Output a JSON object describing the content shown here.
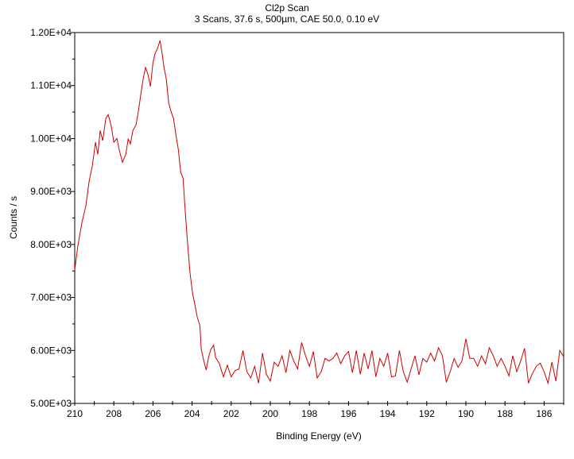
{
  "chart_data": {
    "type": "line",
    "title": "Cl2p Scan",
    "subtitle": "3 Scans,  37.6 s,  500µm,  CAE 50.0,  0.10 eV",
    "xlabel": "Binding Energy (eV)",
    "ylabel": "Counts / s",
    "xlim": [
      210,
      185
    ],
    "ylim": [
      5000,
      12000
    ],
    "x_ticks": [
      "210",
      "208",
      "206",
      "204",
      "202",
      "200",
      "198",
      "196",
      "194",
      "192",
      "190",
      "188",
      "186"
    ],
    "y_ticks": [
      "5.00E+03",
      "6.00E+03",
      "7.00E+03",
      "8.00E+03",
      "9.00E+03",
      "1.00E+04",
      "1.10E+04",
      "1.20E+04"
    ],
    "grid": false,
    "series": [
      {
        "name": "Cl2p",
        "color": "#cc0000",
        "points": [
          [
            210,
            7520
          ],
          [
            209.84,
            7970
          ],
          [
            209.63,
            8420
          ],
          [
            209.43,
            8730
          ],
          [
            209.27,
            9180
          ],
          [
            209.1,
            9480
          ],
          [
            208.94,
            9930
          ],
          [
            208.82,
            9700
          ],
          [
            208.7,
            10150
          ],
          [
            208.57,
            9960
          ],
          [
            208.41,
            10380
          ],
          [
            208.29,
            10450
          ],
          [
            208.13,
            10230
          ],
          [
            208.0,
            9930
          ],
          [
            207.84,
            10000
          ],
          [
            207.72,
            9780
          ],
          [
            207.56,
            9550
          ],
          [
            207.39,
            9700
          ],
          [
            207.27,
            9990
          ],
          [
            207.15,
            9900
          ],
          [
            207.03,
            10150
          ],
          [
            206.86,
            10260
          ],
          [
            206.74,
            10530
          ],
          [
            206.62,
            10830
          ],
          [
            206.5,
            11130
          ],
          [
            206.38,
            11340
          ],
          [
            206.25,
            11200
          ],
          [
            206.13,
            10980
          ],
          [
            206.0,
            11430
          ],
          [
            205.89,
            11610
          ],
          [
            205.77,
            11700
          ],
          [
            205.64,
            11850
          ],
          [
            205.52,
            11580
          ],
          [
            205.44,
            11350
          ],
          [
            205.32,
            11130
          ],
          [
            205.2,
            10680
          ],
          [
            205.07,
            10500
          ],
          [
            204.95,
            10380
          ],
          [
            204.83,
            10080
          ],
          [
            204.7,
            9780
          ],
          [
            204.58,
            9360
          ],
          [
            204.46,
            9250
          ],
          [
            204.34,
            8580
          ],
          [
            204.22,
            7970
          ],
          [
            204.1,
            7450
          ],
          [
            203.97,
            7070
          ],
          [
            203.85,
            6850
          ],
          [
            203.73,
            6620
          ],
          [
            203.6,
            6470
          ],
          [
            203.53,
            6020
          ],
          [
            203.4,
            5800
          ],
          [
            203.28,
            5630
          ],
          [
            203.16,
            5870
          ],
          [
            203.04,
            6020
          ],
          [
            202.9,
            6100
          ],
          [
            202.8,
            5870
          ],
          [
            202.6,
            5750
          ],
          [
            202.4,
            5500
          ],
          [
            202.2,
            5720
          ],
          [
            202.0,
            5500
          ],
          [
            201.8,
            5620
          ],
          [
            201.6,
            5650
          ],
          [
            201.4,
            6000
          ],
          [
            201.2,
            5600
          ],
          [
            201.0,
            5480
          ],
          [
            200.8,
            5700
          ],
          [
            200.6,
            5380
          ],
          [
            200.4,
            5950
          ],
          [
            200.2,
            5550
          ],
          [
            200.0,
            5420
          ],
          [
            199.8,
            5780
          ],
          [
            199.6,
            5700
          ],
          [
            199.4,
            5900
          ],
          [
            199.2,
            5580
          ],
          [
            199.0,
            6000
          ],
          [
            198.8,
            5800
          ],
          [
            198.6,
            5650
          ],
          [
            198.4,
            6150
          ],
          [
            198.2,
            5900
          ],
          [
            198.0,
            5700
          ],
          [
            197.8,
            5980
          ],
          [
            197.6,
            5480
          ],
          [
            197.4,
            5600
          ],
          [
            197.2,
            5850
          ],
          [
            197.0,
            5800
          ],
          [
            196.8,
            5850
          ],
          [
            196.6,
            5950
          ],
          [
            196.4,
            5750
          ],
          [
            196.2,
            5900
          ],
          [
            196.0,
            5980
          ],
          [
            195.8,
            5580
          ],
          [
            195.6,
            6000
          ],
          [
            195.4,
            5550
          ],
          [
            195.2,
            5950
          ],
          [
            195.0,
            5650
          ],
          [
            194.8,
            6000
          ],
          [
            194.6,
            5500
          ],
          [
            194.4,
            5850
          ],
          [
            194.2,
            5700
          ],
          [
            194.0,
            5950
          ],
          [
            193.8,
            5500
          ],
          [
            193.6,
            5520
          ],
          [
            193.4,
            6000
          ],
          [
            193.2,
            5600
          ],
          [
            193.0,
            5400
          ],
          [
            192.8,
            5650
          ],
          [
            192.6,
            5900
          ],
          [
            192.4,
            5540
          ],
          [
            192.2,
            5850
          ],
          [
            192.0,
            5780
          ],
          [
            191.8,
            5950
          ],
          [
            191.6,
            5800
          ],
          [
            191.4,
            6050
          ],
          [
            191.2,
            5900
          ],
          [
            191.0,
            5400
          ],
          [
            190.8,
            5600
          ],
          [
            190.6,
            5850
          ],
          [
            190.4,
            5680
          ],
          [
            190.2,
            5800
          ],
          [
            190.0,
            6220
          ],
          [
            189.8,
            5850
          ],
          [
            189.6,
            5850
          ],
          [
            189.4,
            5700
          ],
          [
            189.2,
            5900
          ],
          [
            189.0,
            5750
          ],
          [
            188.8,
            6050
          ],
          [
            188.6,
            5900
          ],
          [
            188.4,
            5700
          ],
          [
            188.2,
            5850
          ],
          [
            188.0,
            5700
          ],
          [
            187.8,
            5520
          ],
          [
            187.6,
            5900
          ],
          [
            187.4,
            5600
          ],
          [
            187.2,
            5800
          ],
          [
            187.0,
            6040
          ],
          [
            186.8,
            5380
          ],
          [
            186.6,
            5560
          ],
          [
            186.4,
            5700
          ],
          [
            186.2,
            5760
          ],
          [
            186.0,
            5600
          ],
          [
            185.8,
            5380
          ],
          [
            185.6,
            5780
          ],
          [
            185.4,
            5420
          ],
          [
            185.2,
            6000
          ],
          [
            185.0,
            5880
          ]
        ]
      }
    ]
  }
}
